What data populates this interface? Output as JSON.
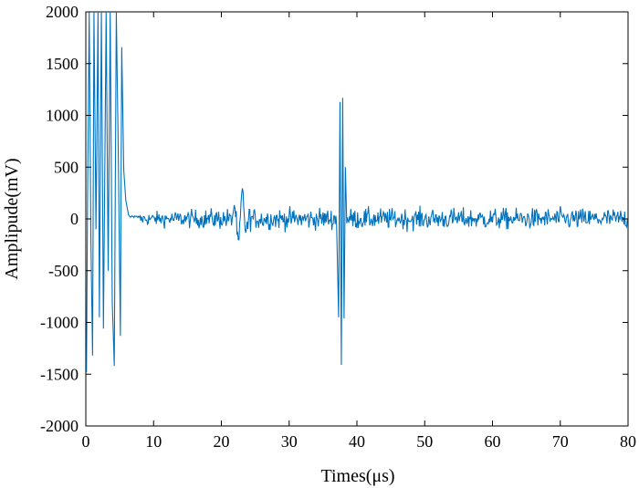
{
  "chart_data": {
    "type": "line",
    "title": "",
    "xlabel": "Times(μs)",
    "ylabel": "Amplipude(mV)",
    "xlim": [
      0,
      80
    ],
    "ylim": [
      -2000,
      2000
    ],
    "xticks": [
      0,
      10,
      20,
      30,
      40,
      50,
      60,
      70,
      80
    ],
    "yticks": [
      -2000,
      -1500,
      -1000,
      -500,
      0,
      500,
      1000,
      1500,
      2000
    ],
    "xtick_labels": [
      "0",
      "10",
      "20",
      "30",
      "40",
      "50",
      "60",
      "70",
      "80"
    ],
    "ytick_labels": [
      "-2000",
      "-1500",
      "-1000",
      "-500",
      "0",
      "500",
      "1000",
      "1500",
      "2000"
    ],
    "grid": false,
    "line_color": "#0072BD",
    "series": [
      {
        "x_start": 0,
        "x_step": 0.1,
        "x_end": 80,
        "events": [
          {
            "t": 0.1,
            "v": -1480
          },
          {
            "t": 0.25,
            "v": 120
          },
          {
            "t": 0.5,
            "v": 2000
          },
          {
            "t": 0.75,
            "v": -200
          },
          {
            "t": 1.0,
            "v": -1320
          },
          {
            "t": 1.2,
            "v": 2000
          },
          {
            "t": 1.5,
            "v": -100
          },
          {
            "t": 1.8,
            "v": 2000
          },
          {
            "t": 2.0,
            "v": -950
          },
          {
            "t": 2.3,
            "v": 2000
          },
          {
            "t": 2.6,
            "v": -1060
          },
          {
            "t": 3.0,
            "v": 2000
          },
          {
            "t": 3.3,
            "v": -500
          },
          {
            "t": 3.6,
            "v": 2000
          },
          {
            "t": 3.9,
            "v": -800
          },
          {
            "t": 4.2,
            "v": -1420
          },
          {
            "t": 4.5,
            "v": 2000
          },
          {
            "t": 4.8,
            "v": 600
          },
          {
            "t": 5.1,
            "v": -1130
          },
          {
            "t": 5.3,
            "v": 1660
          },
          {
            "t": 5.6,
            "v": 470
          },
          {
            "t": 5.9,
            "v": 180
          },
          {
            "t": 6.3,
            "v": 40
          },
          {
            "t": 37.3,
            "v": -950
          },
          {
            "t": 37.5,
            "v": 1130
          },
          {
            "t": 37.7,
            "v": -1410
          },
          {
            "t": 37.9,
            "v": 1170
          },
          {
            "t": 38.1,
            "v": -960
          },
          {
            "t": 38.3,
            "v": 500
          }
        ],
        "noise_amplitude": 130,
        "noise_start": 8,
        "burst_center_1": 22.8,
        "burst_peak_1": 270
      }
    ]
  }
}
